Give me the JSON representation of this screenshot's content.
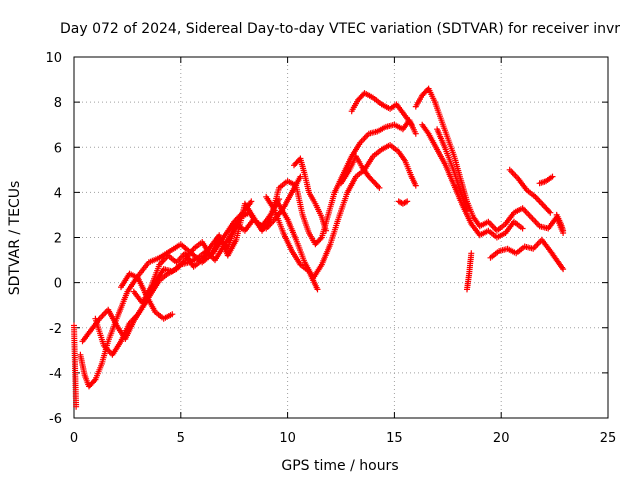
{
  "chart_data": {
    "type": "scatter",
    "title": "Day 072 of 2024, Sidereal Day-to-day VTEC variation (SDTVAR) for receiver invr",
    "xlabel": "GPS time / hours",
    "ylabel": "SDTVAR / TECUs",
    "xlim": [
      0,
      25
    ],
    "ylim": [
      -6,
      10
    ],
    "xticks": [
      0,
      5,
      10,
      15,
      20,
      25
    ],
    "yticks": [
      -6,
      -4,
      -2,
      0,
      2,
      4,
      6,
      8,
      10
    ],
    "xtick_labels": [
      "0",
      "5",
      "10",
      "15",
      "20",
      "25"
    ],
    "ytick_labels": [
      "-6",
      "-4",
      "-2",
      "0",
      "2",
      "4",
      "6",
      "8",
      "10"
    ],
    "grid": true,
    "marker": "+",
    "colors": {
      "series": "#ff0000",
      "grid": "#a0a0a0",
      "axis": "#000000"
    },
    "series": [
      {
        "name": "SDTVAR",
        "traces": [
          [
            [
              0.0,
              -1.9
            ],
            [
              0.05,
              -3.8
            ],
            [
              0.1,
              -5.5
            ]
          ],
          [
            [
              0.3,
              -3.2
            ],
            [
              0.5,
              -4.1
            ],
            [
              0.7,
              -4.6
            ],
            [
              1.0,
              -4.3
            ],
            [
              1.3,
              -3.6
            ],
            [
              1.6,
              -2.6
            ],
            [
              2.0,
              -1.6
            ],
            [
              2.5,
              -0.4
            ],
            [
              3.0,
              0.3
            ],
            [
              3.5,
              0.9
            ],
            [
              4.0,
              1.1
            ],
            [
              4.5,
              1.4
            ],
            [
              5.0,
              1.7
            ],
            [
              5.5,
              1.3
            ],
            [
              6.0,
              0.9
            ],
            [
              6.5,
              1.3
            ],
            [
              7.0,
              2.0
            ],
            [
              7.5,
              2.7
            ],
            [
              8.0,
              3.2
            ],
            [
              8.3,
              3.6
            ]
          ],
          [
            [
              0.4,
              -2.6
            ],
            [
              0.8,
              -2.1
            ],
            [
              1.2,
              -1.6
            ],
            [
              1.6,
              -1.2
            ],
            [
              2.0,
              -1.9
            ],
            [
              2.4,
              -2.5
            ],
            [
              2.8,
              -1.7
            ],
            [
              3.2,
              -1.1
            ],
            [
              3.6,
              -0.5
            ],
            [
              4.0,
              0.1
            ],
            [
              4.4,
              0.4
            ],
            [
              4.8,
              0.6
            ],
            [
              5.2,
              1.0
            ],
            [
              5.6,
              1.5
            ],
            [
              6.0,
              1.8
            ],
            [
              6.4,
              1.2
            ],
            [
              6.8,
              1.9
            ],
            [
              7.2,
              1.5
            ],
            [
              7.6,
              2.6
            ],
            [
              8.0,
              2.3
            ],
            [
              8.4,
              2.8
            ],
            [
              8.8,
              2.5
            ],
            [
              9.2,
              3.0
            ],
            [
              9.6,
              3.7
            ]
          ],
          [
            [
              1.0,
              -1.6
            ],
            [
              1.4,
              -2.8
            ],
            [
              1.8,
              -3.2
            ],
            [
              2.2,
              -2.6
            ],
            [
              2.6,
              -1.8
            ],
            [
              3.0,
              -1.4
            ],
            [
              3.4,
              -0.8
            ],
            [
              3.8,
              0.0
            ],
            [
              4.2,
              0.6
            ],
            [
              4.6,
              0.5
            ],
            [
              5.0,
              0.8
            ],
            [
              5.4,
              0.9
            ],
            [
              5.8,
              1.1
            ],
            [
              6.2,
              1.4
            ],
            [
              6.6,
              1.0
            ],
            [
              7.0,
              1.6
            ],
            [
              7.4,
              2.2
            ],
            [
              7.8,
              2.9
            ],
            [
              8.2,
              3.1
            ],
            [
              8.6,
              2.6
            ],
            [
              9.0,
              2.4
            ],
            [
              9.4,
              2.8
            ],
            [
              9.8,
              3.3
            ],
            [
              10.2,
              4.0
            ],
            [
              10.6,
              4.7
            ]
          ],
          [
            [
              2.2,
              -0.2
            ],
            [
              2.6,
              0.4
            ],
            [
              3.0,
              0.2
            ],
            [
              3.4,
              -0.6
            ],
            [
              3.8,
              -1.3
            ],
            [
              4.2,
              -1.6
            ],
            [
              4.6,
              -1.4
            ]
          ],
          [
            [
              2.8,
              -0.4
            ],
            [
              3.2,
              -0.9
            ],
            [
              3.6,
              -0.2
            ],
            [
              4.0,
              0.8
            ],
            [
              4.4,
              1.2
            ],
            [
              4.8,
              0.9
            ],
            [
              5.2,
              1.3
            ],
            [
              5.6,
              0.7
            ],
            [
              6.0,
              1.0
            ],
            [
              6.4,
              1.6
            ],
            [
              6.8,
              2.1
            ],
            [
              7.2,
              1.2
            ],
            [
              7.6,
              1.9
            ],
            [
              8.0,
              3.5
            ],
            [
              8.4,
              2.9
            ],
            [
              8.8,
              2.3
            ],
            [
              9.2,
              2.8
            ],
            [
              9.6,
              4.2
            ],
            [
              10.0,
              4.5
            ],
            [
              10.4,
              4.3
            ],
            [
              10.7,
              3.0
            ],
            [
              11.0,
              2.2
            ],
            [
              11.3,
              1.7
            ],
            [
              11.6,
              2.0
            ],
            [
              11.9,
              3.0
            ],
            [
              12.2,
              4.0
            ],
            [
              12.6,
              4.8
            ],
            [
              13.0,
              5.6
            ],
            [
              13.4,
              6.2
            ],
            [
              13.8,
              6.6
            ],
            [
              14.2,
              6.7
            ],
            [
              14.6,
              6.9
            ],
            [
              15.0,
              7.0
            ],
            [
              15.4,
              6.8
            ],
            [
              15.7,
              7.2
            ],
            [
              16.0,
              6.6
            ]
          ],
          [
            [
              9.0,
              3.8
            ],
            [
              9.4,
              3.2
            ],
            [
              9.8,
              2.2
            ],
            [
              10.2,
              1.4
            ],
            [
              10.6,
              0.8
            ],
            [
              11.0,
              0.5
            ],
            [
              11.4,
              -0.3
            ]
          ],
          [
            [
              9.5,
              3.6
            ],
            [
              10.0,
              2.8
            ],
            [
              10.4,
              1.9
            ],
            [
              10.8,
              0.9
            ],
            [
              11.2,
              0.2
            ],
            [
              11.6,
              0.8
            ],
            [
              12.0,
              1.7
            ],
            [
              12.4,
              2.9
            ],
            [
              12.8,
              4.0
            ],
            [
              13.2,
              4.7
            ],
            [
              13.6,
              5.0
            ],
            [
              14.0,
              5.6
            ],
            [
              14.4,
              5.9
            ],
            [
              14.8,
              6.1
            ],
            [
              15.2,
              5.8
            ],
            [
              15.5,
              5.4
            ],
            [
              15.8,
              4.7
            ],
            [
              16.0,
              4.3
            ]
          ],
          [
            [
              10.3,
              5.2
            ],
            [
              10.6,
              5.5
            ],
            [
              10.8,
              4.8
            ],
            [
              11.0,
              4.0
            ],
            [
              11.3,
              3.5
            ],
            [
              11.6,
              2.9
            ],
            [
              11.8,
              2.3
            ]
          ],
          [
            [
              12.5,
              4.4
            ],
            [
              12.9,
              5.0
            ],
            [
              13.2,
              5.6
            ],
            [
              13.5,
              5.1
            ],
            [
              13.8,
              4.7
            ],
            [
              14.1,
              4.4
            ],
            [
              14.3,
              4.2
            ]
          ],
          [
            [
              13.0,
              7.6
            ],
            [
              13.3,
              8.1
            ],
            [
              13.6,
              8.4
            ],
            [
              14.0,
              8.2
            ],
            [
              14.4,
              7.9
            ],
            [
              14.8,
              7.7
            ],
            [
              15.1,
              7.9
            ],
            [
              15.5,
              7.4
            ],
            [
              15.8,
              7.0
            ]
          ],
          [
            [
              15.2,
              3.6
            ],
            [
              15.4,
              3.5
            ],
            [
              15.6,
              3.6
            ]
          ],
          [
            [
              16.0,
              7.8
            ],
            [
              16.3,
              8.3
            ],
            [
              16.6,
              8.6
            ],
            [
              16.9,
              8.0
            ],
            [
              17.2,
              7.2
            ],
            [
              17.5,
              6.4
            ],
            [
              17.8,
              5.6
            ],
            [
              18.1,
              4.6
            ],
            [
              18.4,
              3.6
            ],
            [
              18.7,
              2.9
            ],
            [
              19.0,
              2.5
            ],
            [
              19.4,
              2.7
            ],
            [
              19.8,
              2.3
            ],
            [
              20.2,
              2.6
            ],
            [
              20.6,
              3.1
            ],
            [
              21.0,
              3.3
            ],
            [
              21.4,
              2.9
            ],
            [
              21.8,
              2.5
            ],
            [
              22.2,
              2.4
            ],
            [
              22.6,
              2.9
            ],
            [
              22.9,
              2.2
            ]
          ],
          [
            [
              16.3,
              7.0
            ],
            [
              16.6,
              6.6
            ],
            [
              17.0,
              5.9
            ],
            [
              17.4,
              5.2
            ],
            [
              17.8,
              4.3
            ],
            [
              18.2,
              3.4
            ],
            [
              18.6,
              2.6
            ],
            [
              19.0,
              2.1
            ],
            [
              19.4,
              2.3
            ],
            [
              19.8,
              2.0
            ],
            [
              20.2,
              2.2
            ],
            [
              20.6,
              2.7
            ],
            [
              21.0,
              2.4
            ]
          ],
          [
            [
              17.0,
              6.8
            ],
            [
              17.4,
              5.9
            ],
            [
              17.8,
              4.9
            ],
            [
              18.1,
              4.0
            ],
            [
              18.4,
              3.2
            ]
          ],
          [
            [
              18.4,
              -0.3
            ],
            [
              18.5,
              0.4
            ],
            [
              18.6,
              1.3
            ]
          ],
          [
            [
              19.5,
              1.1
            ],
            [
              19.9,
              1.4
            ],
            [
              20.3,
              1.5
            ],
            [
              20.7,
              1.3
            ],
            [
              21.1,
              1.6
            ],
            [
              21.5,
              1.5
            ],
            [
              21.9,
              1.9
            ],
            [
              22.3,
              1.4
            ],
            [
              22.6,
              1.0
            ],
            [
              22.9,
              0.6
            ]
          ],
          [
            [
              20.4,
              5.0
            ],
            [
              20.8,
              4.6
            ],
            [
              21.2,
              4.1
            ],
            [
              21.6,
              3.8
            ],
            [
              22.0,
              3.4
            ],
            [
              22.3,
              3.1
            ]
          ],
          [
            [
              21.8,
              4.4
            ],
            [
              22.1,
              4.5
            ],
            [
              22.4,
              4.7
            ]
          ],
          [
            [
              22.6,
              3.0
            ],
            [
              22.8,
              2.6
            ],
            [
              22.9,
              2.3
            ]
          ]
        ]
      }
    ]
  }
}
